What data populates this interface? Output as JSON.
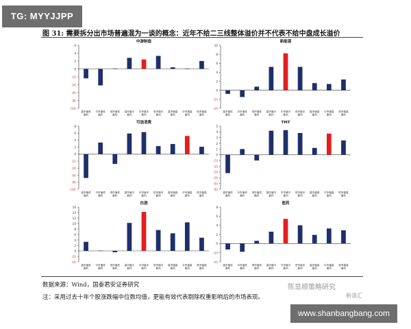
{
  "badge": "TG: MYYJJPP",
  "figure_title": "图 31: 需要拆分出市场普遍混为一谈的概念：近年不给二三线整体溢价并不代表不给中盘成长溢价",
  "source": "数据来源：Wind，国泰君安证券研究",
  "note": "注：采用过去十年个股涨跌幅中位数均值，更能有效代表剔除权重影响后的市场表现。",
  "watermark": "陈显顺策略研究",
  "watermark_sub": "新浪汇",
  "url_badge": "www.shanbangbang.com",
  "colors": {
    "navy": "#1f2f6b",
    "red": "#e41e1e",
    "axis": "#333333",
    "tick": "#cc2a2a"
  },
  "chart_data": [
    {
      "type": "bar",
      "title": "中游制造",
      "categories": [
        "高市值低\n盈利",
        "中市值低\n盈利",
        "低市值低\n盈利",
        "高市值中\n盈利",
        "中市值中\n盈利",
        "低市值中\n盈利",
        "高市值高\n盈利",
        "中市值高\n盈利",
        "低市值高\n盈利"
      ],
      "values": [
        -2.4,
        -4.2,
        0.1,
        2.8,
        2.4,
        3.3,
        0.4,
        0.1,
        2.0
      ],
      "highlight_index": 4,
      "ylim": [
        -10,
        6
      ],
      "yticks": [
        6,
        4,
        2,
        0,
        -2,
        -4,
        -6,
        -8,
        -10
      ],
      "ytick_labels": [
        "6",
        "4",
        "2",
        "0",
        "(2)",
        "(4)",
        "(6)",
        "(8)",
        "(10)"
      ]
    },
    {
      "type": "bar",
      "title": "新能源",
      "categories": [
        "高市值低\n盈利",
        "中市值低\n盈利",
        "低市值低\n盈利",
        "高市值中\n盈利",
        "中市值中\n盈利",
        "低市值中\n盈利",
        "高市值高\n盈利",
        "中市值高\n盈利",
        "低市值高\n盈利"
      ],
      "values": [
        -0.8,
        -1.5,
        0.8,
        5.2,
        8.2,
        5.2,
        1.6,
        1.4,
        2.4
      ],
      "highlight_index": 4,
      "ylim": [
        -4,
        10
      ],
      "yticks": [
        10,
        8,
        6,
        4,
        2,
        0,
        -2,
        -4
      ],
      "ytick_labels": [
        "10",
        "8",
        "6",
        "4",
        "2",
        "0",
        "(2)",
        "(4)"
      ]
    },
    {
      "type": "bar",
      "title": "可选消费",
      "categories": [
        "高市值低\n盈利",
        "中市值低\n盈利",
        "低市值低\n盈利",
        "高市值中\n盈利",
        "中市值中\n盈利",
        "低市值中\n盈利",
        "高市值高\n盈利",
        "中市值高\n盈利",
        "低市值高\n盈利"
      ],
      "values": [
        -6.8,
        3.3,
        -2.8,
        5.9,
        6.3,
        2.3,
        2.9,
        5.2,
        2.1
      ],
      "highlight_index": 7,
      "ylim": [
        -10,
        8
      ],
      "yticks": [
        8,
        6,
        4,
        2,
        0,
        -2,
        -4,
        -6,
        -8,
        -10
      ],
      "ytick_labels": [
        "8",
        "6",
        "4",
        "2",
        "0",
        "(2)",
        "(4)",
        "(6)",
        "(8)",
        "(10)"
      ]
    },
    {
      "type": "bar",
      "title": "TMT",
      "categories": [
        "高市值低\n盈利",
        "中市值低\n盈利",
        "低市值低\n盈利",
        "高市值中\n盈利",
        "中市值中\n盈利",
        "低市值中\n盈利",
        "高市值高\n盈利",
        "中市值高\n盈利",
        "低市值高\n盈利"
      ],
      "values": [
        -3.2,
        1.0,
        -1.0,
        4.2,
        4.3,
        3.8,
        1.2,
        3.7,
        2.5
      ],
      "highlight_index": 7,
      "ylim": [
        -6,
        5
      ],
      "yticks": [
        5,
        4,
        3,
        2,
        1,
        0,
        -1,
        -2,
        -3,
        -4,
        -5,
        -6
      ],
      "ytick_labels": [
        "5",
        "4",
        "3",
        "2",
        "1",
        "0",
        "(1)",
        "(2)",
        "(3)",
        "(4)",
        "(5)",
        "(6)"
      ]
    },
    {
      "type": "bar",
      "title": "白酒",
      "categories": [
        "高市值低\n盈利",
        "中市值低\n盈利",
        "低市值低\n盈利",
        "高市值中\n盈利",
        "中市值中\n盈利",
        "低市值中\n盈利",
        "高市值高\n盈利",
        "中市值高\n盈利",
        "低市值高\n盈利"
      ],
      "values": [
        3.3,
        0.1,
        -0.5,
        10.2,
        14.2,
        7.6,
        6.4,
        10.4,
        4.8
      ],
      "highlight_index": 4,
      "ylim": [
        -4,
        16
      ],
      "yticks": [
        16,
        14,
        12,
        10,
        8,
        6,
        4,
        2,
        0,
        -2,
        -4
      ],
      "ytick_labels": [
        "16",
        "14",
        "12",
        "10",
        "8",
        "6",
        "4",
        "2",
        "0",
        "(2)",
        "(4)"
      ]
    },
    {
      "type": "bar",
      "title": "医药",
      "categories": [
        "高市值低\n盈利",
        "中市值低\n盈利",
        "低市值低\n盈利",
        "高市值中\n盈利",
        "中市值中\n盈利",
        "低市值中\n盈利",
        "高市值高\n盈利",
        "中市值高\n盈利",
        "低市值高\n盈利"
      ],
      "values": [
        -1.3,
        -1.8,
        0.6,
        2.6,
        5.4,
        4.0,
        1.9,
        3.3,
        2.9
      ],
      "highlight_index": 4,
      "ylim": [
        -4,
        8
      ],
      "yticks": [
        8,
        6,
        4,
        2,
        0,
        -2,
        -4
      ],
      "ytick_labels": [
        "8",
        "6",
        "4",
        "2",
        "0",
        "(2)",
        "(4)"
      ]
    }
  ]
}
